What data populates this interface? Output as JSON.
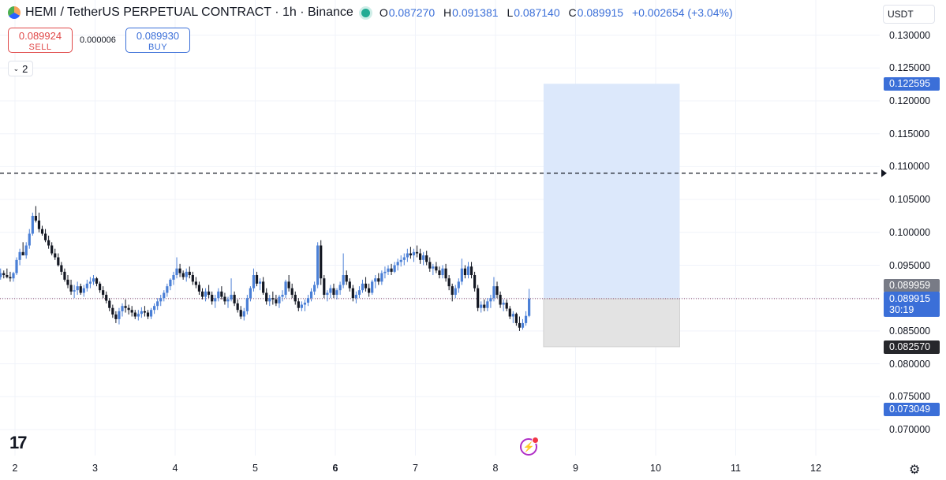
{
  "header": {
    "title": "HEMI / TetherUS PERPETUAL CONTRACT · 1h · Binance",
    "ohlc": [
      {
        "key": "O",
        "value": "0.087270"
      },
      {
        "key": "H",
        "value": "0.091381"
      },
      {
        "key": "L",
        "value": "0.087140"
      },
      {
        "key": "C",
        "value": "0.089915"
      }
    ],
    "change": "+0.002654 (+3.04%)"
  },
  "trade": {
    "sell_price": "0.089924",
    "sell_label": "SELL",
    "spread": "0.000006",
    "buy_price": "0.089930",
    "buy_label": "BUY"
  },
  "indicators_toggle": {
    "count": "2"
  },
  "currency": "USDT",
  "price_tags": {
    "target": "0.122595",
    "prev_close": "0.089959",
    "last": "0.089915",
    "countdown": "30:19",
    "stop": "0.082570",
    "low_marker": "0.073049"
  },
  "icons": {
    "logo": "tradingview-logo",
    "settings": "gear-icon",
    "bolt": "lightning-icon"
  },
  "colors": {
    "up": "#4a7fd6",
    "down": "#131722",
    "profit_zone": "#dce8fb",
    "loss_zone": "#e3e3e3",
    "last_price": "#3b6fd8"
  },
  "tv_logo_text": "17",
  "chart_data": {
    "type": "candlestick",
    "title": "HEMI / TetherUS PERPETUAL CONTRACT · 1h · Binance",
    "y_ticks": [
      "0.130000",
      "0.125000",
      "0.120000",
      "0.115000",
      "0.110000",
      "0.105000",
      "0.100000",
      "0.095000",
      "0.090000",
      "0.085000",
      "0.080000",
      "0.075000",
      "0.070000"
    ],
    "x_ticks": [
      "2",
      "3",
      "4",
      "5",
      "6",
      "7",
      "8",
      "9",
      "10",
      "11",
      "12"
    ],
    "ylim": [
      0.0675,
      0.1325
    ],
    "dashed_level": 0.109,
    "position_box": {
      "start_day": 8.6,
      "end_day": 10.3,
      "entry": 0.0899,
      "target": 0.1226,
      "stop": 0.0826
    },
    "candles": [
      [
        1.82,
        0.0932,
        0.0945,
        0.0928,
        0.0938
      ],
      [
        1.86,
        0.0938,
        0.0942,
        0.093,
        0.0935
      ],
      [
        1.9,
        0.0935,
        0.0945,
        0.093,
        0.0932
      ],
      [
        1.94,
        0.0932,
        0.094,
        0.0925,
        0.093
      ],
      [
        1.98,
        0.093,
        0.094,
        0.0925,
        0.0938
      ],
      [
        2.02,
        0.0938,
        0.0962,
        0.0935,
        0.0958
      ],
      [
        2.06,
        0.0958,
        0.0975,
        0.095,
        0.097
      ],
      [
        2.1,
        0.097,
        0.0985,
        0.0965,
        0.0965
      ],
      [
        2.14,
        0.0965,
        0.0985,
        0.096,
        0.098
      ],
      [
        2.18,
        0.098,
        0.1005,
        0.0975,
        0.0998
      ],
      [
        2.22,
        0.0998,
        0.103,
        0.0995,
        0.1025
      ],
      [
        2.26,
        0.1025,
        0.104,
        0.1015,
        0.1018
      ],
      [
        2.3,
        0.1018,
        0.103,
        0.1,
        0.1005
      ],
      [
        2.34,
        0.1005,
        0.101,
        0.0995,
        0.0998
      ],
      [
        2.38,
        0.0998,
        0.1005,
        0.0985,
        0.0988
      ],
      [
        2.42,
        0.0988,
        0.0995,
        0.0975,
        0.098
      ],
      [
        2.46,
        0.098,
        0.0985,
        0.0965,
        0.0968
      ],
      [
        2.5,
        0.0968,
        0.0975,
        0.0958,
        0.0962
      ],
      [
        2.54,
        0.0962,
        0.0968,
        0.0948,
        0.095
      ],
      [
        2.58,
        0.095,
        0.0955,
        0.0935,
        0.094
      ],
      [
        2.62,
        0.094,
        0.0945,
        0.0925,
        0.0928
      ],
      [
        2.66,
        0.0928,
        0.0935,
        0.0915,
        0.092
      ],
      [
        2.7,
        0.092,
        0.0928,
        0.0905,
        0.091
      ],
      [
        2.74,
        0.091,
        0.092,
        0.09,
        0.0912
      ],
      [
        2.78,
        0.0912,
        0.0925,
        0.0905,
        0.0918
      ],
      [
        2.82,
        0.0918,
        0.0922,
        0.0905,
        0.0908
      ],
      [
        2.86,
        0.0908,
        0.092,
        0.0902,
        0.0915
      ],
      [
        2.9,
        0.0915,
        0.0928,
        0.091,
        0.0922
      ],
      [
        2.94,
        0.0922,
        0.0932,
        0.0915,
        0.0925
      ],
      [
        2.98,
        0.0925,
        0.0935,
        0.092,
        0.093
      ],
      [
        3.02,
        0.093,
        0.0932,
        0.0918,
        0.0922
      ],
      [
        3.06,
        0.0922,
        0.0925,
        0.0908,
        0.0912
      ],
      [
        3.1,
        0.0912,
        0.0918,
        0.09,
        0.0905
      ],
      [
        3.14,
        0.0905,
        0.091,
        0.0892,
        0.0896
      ],
      [
        3.18,
        0.0896,
        0.09,
        0.088,
        0.0885
      ],
      [
        3.22,
        0.0885,
        0.089,
        0.087,
        0.0875
      ],
      [
        3.26,
        0.0875,
        0.088,
        0.0862,
        0.0868
      ],
      [
        3.3,
        0.0868,
        0.0885,
        0.086,
        0.088
      ],
      [
        3.34,
        0.088,
        0.0892,
        0.0872,
        0.0888
      ],
      [
        3.38,
        0.0888,
        0.0898,
        0.0878,
        0.0885
      ],
      [
        3.42,
        0.0885,
        0.089,
        0.0875,
        0.0882
      ],
      [
        3.46,
        0.0882,
        0.0888,
        0.0872,
        0.0878
      ],
      [
        3.5,
        0.0878,
        0.0882,
        0.0868,
        0.0872
      ],
      [
        3.54,
        0.0872,
        0.0882,
        0.0866,
        0.0876
      ],
      [
        3.58,
        0.0876,
        0.0886,
        0.087,
        0.088
      ],
      [
        3.62,
        0.088,
        0.0888,
        0.0872,
        0.0878
      ],
      [
        3.66,
        0.0878,
        0.0882,
        0.0868,
        0.0872
      ],
      [
        3.7,
        0.0872,
        0.0885,
        0.0868,
        0.0882
      ],
      [
        3.74,
        0.0882,
        0.0892,
        0.0876,
        0.0888
      ],
      [
        3.78,
        0.0888,
        0.09,
        0.0882,
        0.0895
      ],
      [
        3.82,
        0.0895,
        0.0905,
        0.0888,
        0.09
      ],
      [
        3.86,
        0.09,
        0.0912,
        0.0895,
        0.0908
      ],
      [
        3.9,
        0.0908,
        0.0922,
        0.0902,
        0.0918
      ],
      [
        3.94,
        0.0918,
        0.093,
        0.0912,
        0.0928
      ],
      [
        3.98,
        0.0928,
        0.094,
        0.092,
        0.0935
      ],
      [
        4.02,
        0.0935,
        0.0962,
        0.093,
        0.0945
      ],
      [
        4.06,
        0.0945,
        0.0952,
        0.0932,
        0.0938
      ],
      [
        4.1,
        0.0938,
        0.0942,
        0.0928,
        0.0932
      ],
      [
        4.14,
        0.0932,
        0.0945,
        0.0925,
        0.094
      ],
      [
        4.18,
        0.094,
        0.0948,
        0.093,
        0.0935
      ],
      [
        4.22,
        0.0935,
        0.094,
        0.092,
        0.0925
      ],
      [
        4.26,
        0.0925,
        0.0932,
        0.0915,
        0.092
      ],
      [
        4.3,
        0.092,
        0.0925,
        0.0905,
        0.091
      ],
      [
        4.34,
        0.091,
        0.0915,
        0.0898,
        0.0902
      ],
      [
        4.38,
        0.0902,
        0.0915,
        0.0895,
        0.091
      ],
      [
        4.42,
        0.091,
        0.092,
        0.09,
        0.0905
      ],
      [
        4.46,
        0.0905,
        0.091,
        0.089,
        0.0895
      ],
      [
        4.5,
        0.0895,
        0.0905,
        0.0885,
        0.09
      ],
      [
        4.54,
        0.09,
        0.0915,
        0.0895,
        0.091
      ],
      [
        4.58,
        0.091,
        0.0918,
        0.0898,
        0.0902
      ],
      [
        4.62,
        0.0902,
        0.0908,
        0.089,
        0.0895
      ],
      [
        4.66,
        0.0895,
        0.0902,
        0.0885,
        0.0898
      ],
      [
        4.7,
        0.0898,
        0.093,
        0.0895,
        0.0905
      ],
      [
        4.74,
        0.0905,
        0.091,
        0.0888,
        0.0892
      ],
      [
        4.78,
        0.0892,
        0.0898,
        0.0878,
        0.0882
      ],
      [
        4.82,
        0.0882,
        0.0888,
        0.0868,
        0.0872
      ],
      [
        4.86,
        0.0872,
        0.0885,
        0.0866,
        0.088
      ],
      [
        4.9,
        0.088,
        0.0905,
        0.0875,
        0.09
      ],
      [
        4.94,
        0.09,
        0.0918,
        0.0895,
        0.0915
      ],
      [
        4.98,
        0.0915,
        0.0945,
        0.091,
        0.0935
      ],
      [
        5.02,
        0.0935,
        0.094,
        0.0918,
        0.0922
      ],
      [
        5.06,
        0.0922,
        0.093,
        0.0912,
        0.0925
      ],
      [
        5.1,
        0.0925,
        0.0932,
        0.0905,
        0.0908
      ],
      [
        5.14,
        0.0908,
        0.0915,
        0.089,
        0.0895
      ],
      [
        5.18,
        0.0895,
        0.0905,
        0.0888,
        0.09
      ],
      [
        5.22,
        0.09,
        0.091,
        0.089,
        0.0898
      ],
      [
        5.26,
        0.0898,
        0.0905,
        0.0888,
        0.0892
      ],
      [
        5.3,
        0.0892,
        0.0905,
        0.0885,
        0.0902
      ],
      [
        5.34,
        0.0902,
        0.0912,
        0.0895,
        0.0905
      ],
      [
        5.38,
        0.0905,
        0.0928,
        0.09,
        0.0925
      ],
      [
        5.42,
        0.0925,
        0.0935,
        0.091,
        0.0915
      ],
      [
        5.46,
        0.0915,
        0.0922,
        0.09,
        0.0905
      ],
      [
        5.5,
        0.0905,
        0.091,
        0.089,
        0.0895
      ],
      [
        5.54,
        0.0895,
        0.09,
        0.088,
        0.0885
      ],
      [
        5.58,
        0.0885,
        0.0895,
        0.088,
        0.089
      ],
      [
        5.62,
        0.089,
        0.0898,
        0.088,
        0.0893
      ],
      [
        5.66,
        0.0893,
        0.0905,
        0.0888,
        0.09
      ],
      [
        5.7,
        0.09,
        0.0915,
        0.0895,
        0.091
      ],
      [
        5.74,
        0.091,
        0.0925,
        0.0905,
        0.092
      ],
      [
        5.78,
        0.092,
        0.0985,
        0.0915,
        0.098
      ],
      [
        5.82,
        0.098,
        0.0988,
        0.092,
        0.093
      ],
      [
        5.86,
        0.093,
        0.0935,
        0.09,
        0.0905
      ],
      [
        5.9,
        0.0905,
        0.0912,
        0.0895,
        0.0908
      ],
      [
        5.94,
        0.0908,
        0.092,
        0.09,
        0.0915
      ],
      [
        5.98,
        0.0915,
        0.0922,
        0.09,
        0.0905
      ],
      [
        6.02,
        0.0905,
        0.0915,
        0.0898,
        0.0912
      ],
      [
        6.06,
        0.0912,
        0.0925,
        0.0905,
        0.092
      ],
      [
        6.1,
        0.092,
        0.0968,
        0.0915,
        0.0935
      ],
      [
        6.14,
        0.0935,
        0.0942,
        0.092,
        0.0925
      ],
      [
        6.18,
        0.0925,
        0.093,
        0.091,
        0.0915
      ],
      [
        6.22,
        0.0915,
        0.092,
        0.0895,
        0.09
      ],
      [
        6.26,
        0.09,
        0.091,
        0.0892,
        0.0905
      ],
      [
        6.3,
        0.0905,
        0.0918,
        0.09,
        0.0912
      ],
      [
        6.34,
        0.0912,
        0.0928,
        0.0908,
        0.0922
      ],
      [
        6.38,
        0.0922,
        0.0932,
        0.091,
        0.0915
      ],
      [
        6.42,
        0.0915,
        0.0922,
        0.0902,
        0.0908
      ],
      [
        6.46,
        0.0908,
        0.0928,
        0.0905,
        0.0925
      ],
      [
        6.5,
        0.0925,
        0.0935,
        0.0915,
        0.093
      ],
      [
        6.54,
        0.093,
        0.0938,
        0.092,
        0.0925
      ],
      [
        6.58,
        0.0925,
        0.0942,
        0.092,
        0.0938
      ],
      [
        6.62,
        0.0938,
        0.0948,
        0.093,
        0.094
      ],
      [
        6.66,
        0.094,
        0.095,
        0.0935,
        0.0945
      ],
      [
        6.7,
        0.0945,
        0.0952,
        0.0935,
        0.094
      ],
      [
        6.74,
        0.094,
        0.0955,
        0.0938,
        0.095
      ],
      [
        6.78,
        0.095,
        0.096,
        0.0942,
        0.0955
      ],
      [
        6.82,
        0.0955,
        0.0965,
        0.0948,
        0.0958
      ],
      [
        6.86,
        0.0958,
        0.0968,
        0.095,
        0.0962
      ],
      [
        6.9,
        0.0962,
        0.0975,
        0.0955,
        0.0968
      ],
      [
        6.94,
        0.0968,
        0.0978,
        0.096,
        0.0965
      ],
      [
        6.98,
        0.0965,
        0.0975,
        0.0955,
        0.097
      ],
      [
        7.02,
        0.097,
        0.098,
        0.0962,
        0.0968
      ],
      [
        7.06,
        0.0968,
        0.0975,
        0.0952,
        0.0958
      ],
      [
        7.1,
        0.0958,
        0.097,
        0.095,
        0.0965
      ],
      [
        7.14,
        0.0965,
        0.0972,
        0.095,
        0.0955
      ],
      [
        7.18,
        0.0955,
        0.0962,
        0.094,
        0.0945
      ],
      [
        7.22,
        0.0945,
        0.0952,
        0.0935,
        0.0948
      ],
      [
        7.26,
        0.0948,
        0.0955,
        0.0938,
        0.0942
      ],
      [
        7.3,
        0.0942,
        0.0948,
        0.093,
        0.0935
      ],
      [
        7.34,
        0.0935,
        0.095,
        0.093,
        0.0945
      ],
      [
        7.38,
        0.0945,
        0.0952,
        0.0925,
        0.093
      ],
      [
        7.42,
        0.093,
        0.0935,
        0.0912,
        0.0918
      ],
      [
        7.46,
        0.0918,
        0.0922,
        0.0895,
        0.0905
      ],
      [
        7.5,
        0.0905,
        0.092,
        0.09,
        0.0915
      ],
      [
        7.54,
        0.0915,
        0.093,
        0.0908,
        0.0925
      ],
      [
        7.58,
        0.0925,
        0.096,
        0.092,
        0.0945
      ],
      [
        7.62,
        0.0945,
        0.095,
        0.093,
        0.0935
      ],
      [
        7.66,
        0.0935,
        0.0955,
        0.093,
        0.0948
      ],
      [
        7.7,
        0.0948,
        0.0955,
        0.093,
        0.0935
      ],
      [
        7.74,
        0.0935,
        0.094,
        0.091,
        0.0915
      ],
      [
        7.78,
        0.0915,
        0.092,
        0.088,
        0.0885
      ],
      [
        7.82,
        0.0885,
        0.0895,
        0.0878,
        0.089
      ],
      [
        7.86,
        0.089,
        0.0898,
        0.088,
        0.0885
      ],
      [
        7.9,
        0.0885,
        0.09,
        0.088,
        0.0895
      ],
      [
        7.94,
        0.0895,
        0.0905,
        0.0885,
        0.09
      ],
      [
        7.98,
        0.09,
        0.0932,
        0.0895,
        0.0918
      ],
      [
        8.02,
        0.0918,
        0.0925,
        0.09,
        0.0905
      ],
      [
        8.06,
        0.0905,
        0.091,
        0.0885,
        0.089
      ],
      [
        8.1,
        0.089,
        0.0898,
        0.088,
        0.0893
      ],
      [
        8.14,
        0.0893,
        0.0898,
        0.088,
        0.0884
      ],
      [
        8.18,
        0.0884,
        0.0888,
        0.0868,
        0.0872
      ],
      [
        8.22,
        0.0872,
        0.088,
        0.0862,
        0.0876
      ],
      [
        8.26,
        0.0876,
        0.0878,
        0.0858,
        0.0862
      ],
      [
        8.3,
        0.0862,
        0.0872,
        0.085,
        0.0855
      ],
      [
        8.34,
        0.0855,
        0.0868,
        0.0852,
        0.0862
      ],
      [
        8.38,
        0.0862,
        0.088,
        0.0858,
        0.0873
      ],
      [
        8.42,
        0.0873,
        0.0914,
        0.0871,
        0.0899
      ]
    ]
  }
}
